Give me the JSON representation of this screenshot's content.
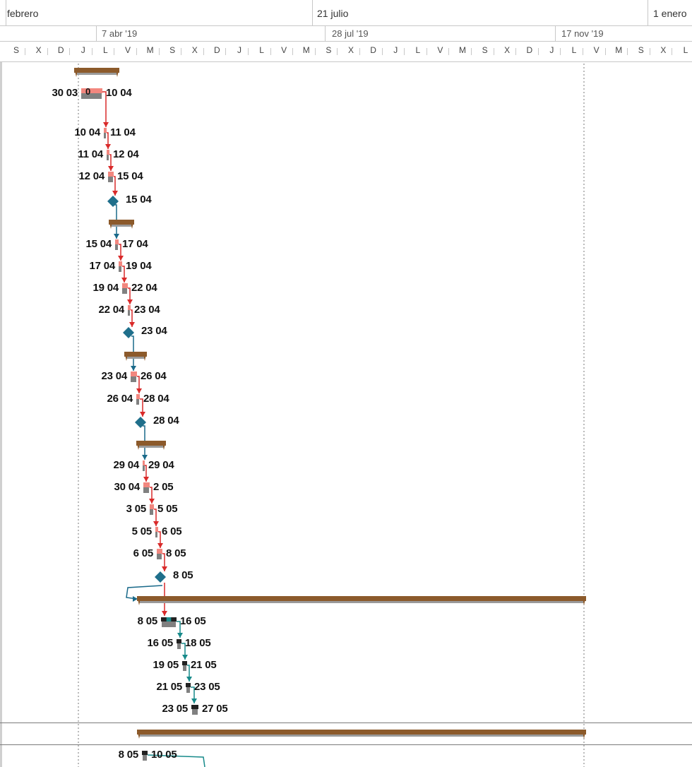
{
  "timescale": {
    "top_tier": [
      {
        "label": "febrero"
      },
      {
        "label": "21 julio"
      },
      {
        "label": "1 enero"
      }
    ],
    "middle_tier": [
      {
        "label": "7 abr '19"
      },
      {
        "label": "28 jul '19"
      },
      {
        "label": "17 nov '19"
      }
    ],
    "day_letters": [
      "S",
      "X",
      "D",
      "J",
      "L",
      "V",
      "M",
      "S",
      "X",
      "D",
      "J",
      "L",
      "V",
      "M",
      "S",
      "X",
      "D",
      "J",
      "L",
      "V",
      "M",
      "S",
      "X",
      "D",
      "J",
      "L",
      "V",
      "M",
      "S",
      "X",
      "L"
    ]
  },
  "rows": [
    {
      "type": "summary",
      "start": "",
      "finish": ""
    },
    {
      "type": "task",
      "start": "30 03",
      "finish": "10 04",
      "inner": "0"
    },
    {
      "type": "task",
      "start": "10 04",
      "finish": "11 04"
    },
    {
      "type": "task",
      "start": "11 04",
      "finish": "12 04"
    },
    {
      "type": "task",
      "start": "12 04",
      "finish": "15 04"
    },
    {
      "type": "milestone",
      "start": "",
      "finish": "15 04"
    },
    {
      "type": "summary",
      "start": "",
      "finish": ""
    },
    {
      "type": "task",
      "start": "15 04",
      "finish": "17 04"
    },
    {
      "type": "task",
      "start": "17 04",
      "finish": "19 04"
    },
    {
      "type": "task",
      "start": "19 04",
      "finish": "22 04"
    },
    {
      "type": "task",
      "start": "22 04",
      "finish": "23 04"
    },
    {
      "type": "milestone",
      "start": "",
      "finish": "23 04"
    },
    {
      "type": "summary",
      "start": "",
      "finish": ""
    },
    {
      "type": "task",
      "start": "23 04",
      "finish": "26 04"
    },
    {
      "type": "task",
      "start": "26 04",
      "finish": "28 04"
    },
    {
      "type": "milestone",
      "start": "",
      "finish": "28 04"
    },
    {
      "type": "summary",
      "start": "",
      "finish": ""
    },
    {
      "type": "task",
      "start": "29 04",
      "finish": "29 04"
    },
    {
      "type": "task",
      "start": "30 04",
      "finish": "2 05"
    },
    {
      "type": "task",
      "start": "3 05",
      "finish": "5 05"
    },
    {
      "type": "task",
      "start": "5 05",
      "finish": "6 05"
    },
    {
      "type": "task",
      "start": "6 05",
      "finish": "8 05"
    },
    {
      "type": "milestone",
      "start": "",
      "finish": "8 05"
    },
    {
      "type": "summary_long",
      "start": "",
      "finish": ""
    },
    {
      "type": "task_dark",
      "start": "8 05",
      "finish": "16 05"
    },
    {
      "type": "task_dark",
      "start": "16 05",
      "finish": "18 05"
    },
    {
      "type": "task_dark",
      "start": "19 05",
      "finish": "21 05"
    },
    {
      "type": "task_dark",
      "start": "21 05",
      "finish": "23 05"
    },
    {
      "type": "task_dark",
      "start": "23 05",
      "finish": "27 05"
    },
    {
      "type": "summary_long",
      "start": "",
      "finish": ""
    },
    {
      "type": "task_dark",
      "start": "8 05",
      "finish": "10 05"
    }
  ],
  "colors": {
    "summary": "#8c5a2b",
    "task_fill": "#f2877f",
    "baseline": "#808080",
    "milestone": "#1f6f8b",
    "critical_link": "#d92a2a",
    "normal_link": "#1a6a8a",
    "teal_link": "#178a8a",
    "dark_task": "#222222"
  }
}
